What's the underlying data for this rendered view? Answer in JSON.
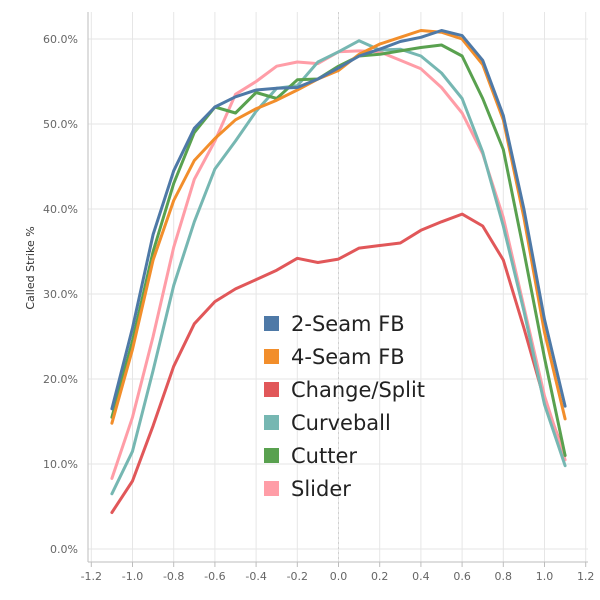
{
  "chart_data": {
    "type": "line",
    "ylabel": "Called Strike %",
    "xlim": [
      -1.2,
      1.2
    ],
    "ylim": [
      0,
      60
    ],
    "x_ticks": [
      "-1.2",
      "-1.0",
      "-0.8",
      "-0.6",
      "-0.4",
      "-0.2",
      "0.0",
      "0.2",
      "0.4",
      "0.6",
      "0.8",
      "1.0",
      "1.2"
    ],
    "y_ticks": [
      "0.0%",
      "10.0%",
      "20.0%",
      "30.0%",
      "40.0%",
      "50.0%",
      "60.0%"
    ],
    "legend_position": "center",
    "x": [
      -1.1,
      -1.0,
      -0.9,
      -0.8,
      -0.7,
      -0.6,
      -0.5,
      -0.4,
      -0.3,
      -0.2,
      -0.1,
      0.0,
      0.1,
      0.2,
      0.3,
      0.4,
      0.5,
      0.6,
      0.7,
      0.8,
      0.9,
      1.0,
      1.1
    ],
    "series": [
      {
        "name": "2-Seam FB",
        "color": "#4e79a7",
        "values": [
          16.5,
          26.0,
          37.0,
          44.5,
          49.5,
          52.0,
          53.2,
          54.0,
          54.2,
          54.3,
          55.3,
          56.6,
          58.0,
          58.8,
          59.7,
          60.2,
          61.0,
          60.4,
          57.5,
          51.0,
          40.0,
          27.0,
          16.8
        ]
      },
      {
        "name": "4-Seam FB",
        "color": "#f28e2b",
        "values": [
          14.8,
          23.5,
          34.0,
          41.0,
          45.7,
          48.3,
          50.5,
          51.8,
          52.8,
          54.0,
          55.3,
          56.3,
          58.2,
          59.4,
          60.2,
          61.0,
          60.8,
          60.0,
          57.0,
          50.5,
          39.0,
          25.5,
          15.3
        ]
      },
      {
        "name": "Change/Split",
        "color": "#e15759",
        "values": [
          4.3,
          8.0,
          14.5,
          21.5,
          26.5,
          29.1,
          30.6,
          31.7,
          32.8,
          34.2,
          33.7,
          34.1,
          35.4,
          35.7,
          36.0,
          37.5,
          38.5,
          39.4,
          38.0,
          34.0,
          26.0,
          17.5,
          11.0
        ]
      },
      {
        "name": "Curveball",
        "color": "#76b7b2",
        "values": [
          6.5,
          11.5,
          21.0,
          31.0,
          38.5,
          44.7,
          48.0,
          51.5,
          54.2,
          54.5,
          57.3,
          58.5,
          59.8,
          58.7,
          58.8,
          58.0,
          56.0,
          53.0,
          46.7,
          38.0,
          28.0,
          17.0,
          9.8
        ]
      },
      {
        "name": "Cutter",
        "color": "#59a14f",
        "values": [
          15.5,
          24.5,
          35.0,
          43.0,
          49.0,
          52.0,
          51.3,
          53.7,
          53.0,
          55.2,
          55.3,
          56.8,
          58.0,
          58.2,
          58.6,
          59.0,
          59.3,
          58.0,
          53.0,
          47.0,
          35.0,
          22.5,
          11.0
        ]
      },
      {
        "name": "Slider",
        "color": "#ff9da7",
        "values": [
          8.3,
          15.5,
          25.0,
          35.5,
          43.5,
          48.0,
          53.5,
          55.0,
          56.8,
          57.3,
          57.1,
          58.5,
          58.6,
          58.5,
          57.5,
          56.5,
          54.3,
          51.3,
          46.5,
          39.0,
          28.5,
          18.0,
          10.5
        ]
      }
    ]
  }
}
